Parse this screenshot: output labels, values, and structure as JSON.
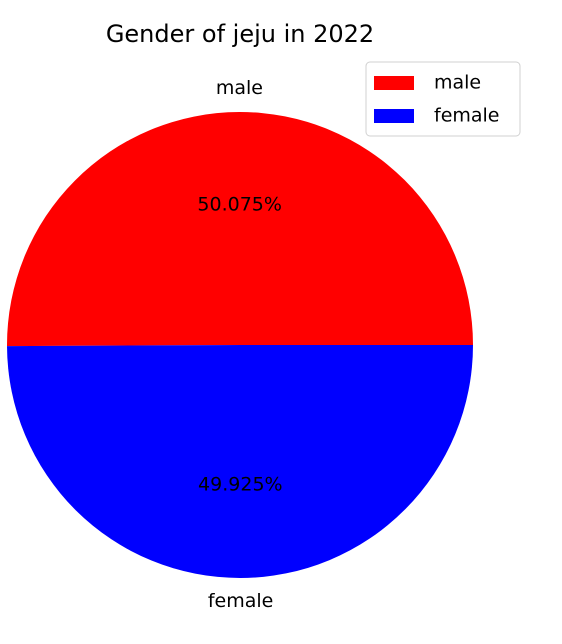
{
  "chart_data": {
    "type": "pie",
    "title": "Gender of jeju in 2022",
    "categories": [
      "male",
      "female"
    ],
    "values": [
      50.075,
      49.925
    ],
    "value_labels": [
      "50.075%",
      "49.925%"
    ],
    "colors": [
      "#ff0000",
      "#0000ff"
    ],
    "start_angle_deg": 0,
    "direction": "counterclockwise",
    "legend": {
      "placement": "top-right",
      "entries": [
        "male",
        "female"
      ]
    }
  }
}
